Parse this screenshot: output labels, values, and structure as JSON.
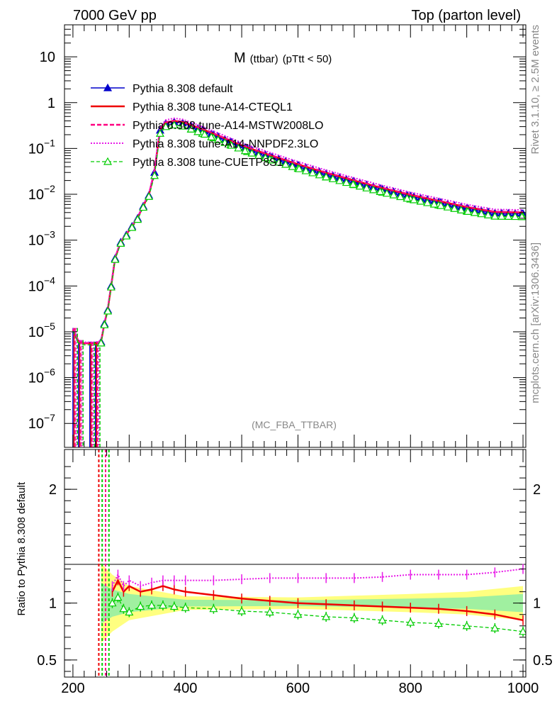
{
  "header": {
    "left": "7000 GeV pp",
    "right": "Top (parton level)"
  },
  "plot": {
    "title_main": "M",
    "title_sub": "(ttbar)",
    "title_cut": "(pTtt < 50)",
    "watermark": "(MC_FBA_TTBAR)",
    "side_right_top": "Rivet 3.1.10, ≥ 2.5M events",
    "side_right_bottom": "mcplots.cern.ch [arXiv:1306.3436]",
    "ratio_ylabel": "Ratio to Pythia 8.308 default"
  },
  "colors": {
    "default": "#0000cc",
    "cteql1": "#ee0000",
    "mstw": "#ff0080",
    "nnpdf": "#e81ae8",
    "cuetp": "#00cc00",
    "band_yellow": "#ffff80",
    "band_green": "#a0f0a0"
  },
  "chart_data": {
    "type": "line",
    "x_range": [
      185,
      1005
    ],
    "x_ticks": [
      "200",
      "400",
      "600",
      "800",
      "1000"
    ],
    "x_tick_values": [
      200,
      400,
      600,
      800,
      1000
    ],
    "main": {
      "y_scale": "log",
      "ylim": [
        3e-08,
        50
      ],
      "y_ticks": [
        {
          "v": 10,
          "label": "10"
        },
        {
          "v": 1,
          "label": "1"
        },
        {
          "v": 0.1,
          "label": "10",
          "exp": "−1"
        },
        {
          "v": 0.01,
          "label": "10",
          "exp": "−2"
        },
        {
          "v": 0.001,
          "label": "10",
          "exp": "−3"
        },
        {
          "v": 0.0001,
          "label": "10",
          "exp": "−4"
        },
        {
          "v": 1e-05,
          "label": "10",
          "exp": "−5"
        },
        {
          "v": 1e-06,
          "label": "10",
          "exp": "−6"
        },
        {
          "v": 1e-07,
          "label": "10",
          "exp": "−7"
        }
      ],
      "curve": {
        "x": [
          200,
          210,
          220,
          230,
          240,
          250,
          256,
          262,
          268,
          275,
          285,
          295,
          305,
          315,
          325,
          335,
          345,
          355,
          365,
          380,
          395,
          410,
          430,
          450,
          480,
          510,
          550,
          600,
          650,
          700,
          750,
          800,
          850,
          900,
          950,
          1000
        ],
        "y": [
          1.1e-05,
          6e-06,
          5.5e-06,
          5.5e-06,
          5.5e-06,
          6e-06,
          1.5e-05,
          3e-05,
          0.0001,
          0.0004,
          0.0009,
          0.0013,
          0.002,
          0.003,
          0.0055,
          0.0095,
          0.03,
          0.25,
          0.35,
          0.38,
          0.36,
          0.31,
          0.25,
          0.2,
          0.14,
          0.1,
          0.068,
          0.043,
          0.028,
          0.019,
          0.013,
          0.0092,
          0.0068,
          0.005,
          0.0039,
          0.0038
        ]
      },
      "series": [
        {
          "name": "Pythia 8.308 default",
          "key": "default",
          "scale": 1.0
        },
        {
          "name": "Pythia 8.308 tune-A14-CTEQL1",
          "key": "cteql1",
          "scale": 1.05
        },
        {
          "name": "Pythia 8.308 tune-A14-MSTW2008LO",
          "key": "mstw",
          "scale": 1.07
        },
        {
          "name": "Pythia 8.308 tune-A14-NNPDF2.3LO",
          "key": "nnpdf",
          "scale": 1.2
        },
        {
          "name": "Pythia 8.308 tune-CUETP8S1",
          "key": "cuetp",
          "scale": 0.85
        }
      ]
    },
    "ratio": {
      "ylim": [
        0.35,
        2.35
      ],
      "y_ticks": [
        "0.5",
        "1",
        "2"
      ],
      "y_tick_values": [
        0.5,
        1,
        2
      ],
      "x": [
        270,
        280,
        290,
        300,
        320,
        340,
        360,
        380,
        400,
        450,
        500,
        550,
        600,
        650,
        700,
        750,
        800,
        850,
        900,
        950,
        1000
      ],
      "series": [
        {
          "name": "Pythia 8.308 tune-A14-CTEQL1",
          "key": "cteql1",
          "values": [
            1.1,
            1.2,
            1.1,
            1.15,
            1.1,
            1.12,
            1.15,
            1.12,
            1.1,
            1.07,
            1.04,
            1.02,
            1.0,
            0.99,
            0.98,
            0.97,
            0.96,
            0.95,
            0.93,
            0.9,
            0.85
          ]
        },
        {
          "name": "Pythia 8.308 tune-A14-NNPDF2.3LO",
          "key": "nnpdf",
          "values": [
            1.15,
            1.25,
            1.15,
            1.2,
            1.15,
            1.18,
            1.2,
            1.2,
            1.2,
            1.2,
            1.21,
            1.22,
            1.22,
            1.22,
            1.22,
            1.23,
            1.25,
            1.25,
            1.25,
            1.27,
            1.3
          ]
        },
        {
          "name": "Pythia 8.308 tune-CUETP8S1",
          "key": "cuetp",
          "values": [
            1.0,
            1.05,
            0.95,
            0.92,
            0.97,
            0.98,
            0.98,
            0.97,
            0.96,
            0.95,
            0.93,
            0.92,
            0.9,
            0.88,
            0.87,
            0.85,
            0.83,
            0.82,
            0.8,
            0.78,
            0.75
          ]
        }
      ]
    }
  }
}
